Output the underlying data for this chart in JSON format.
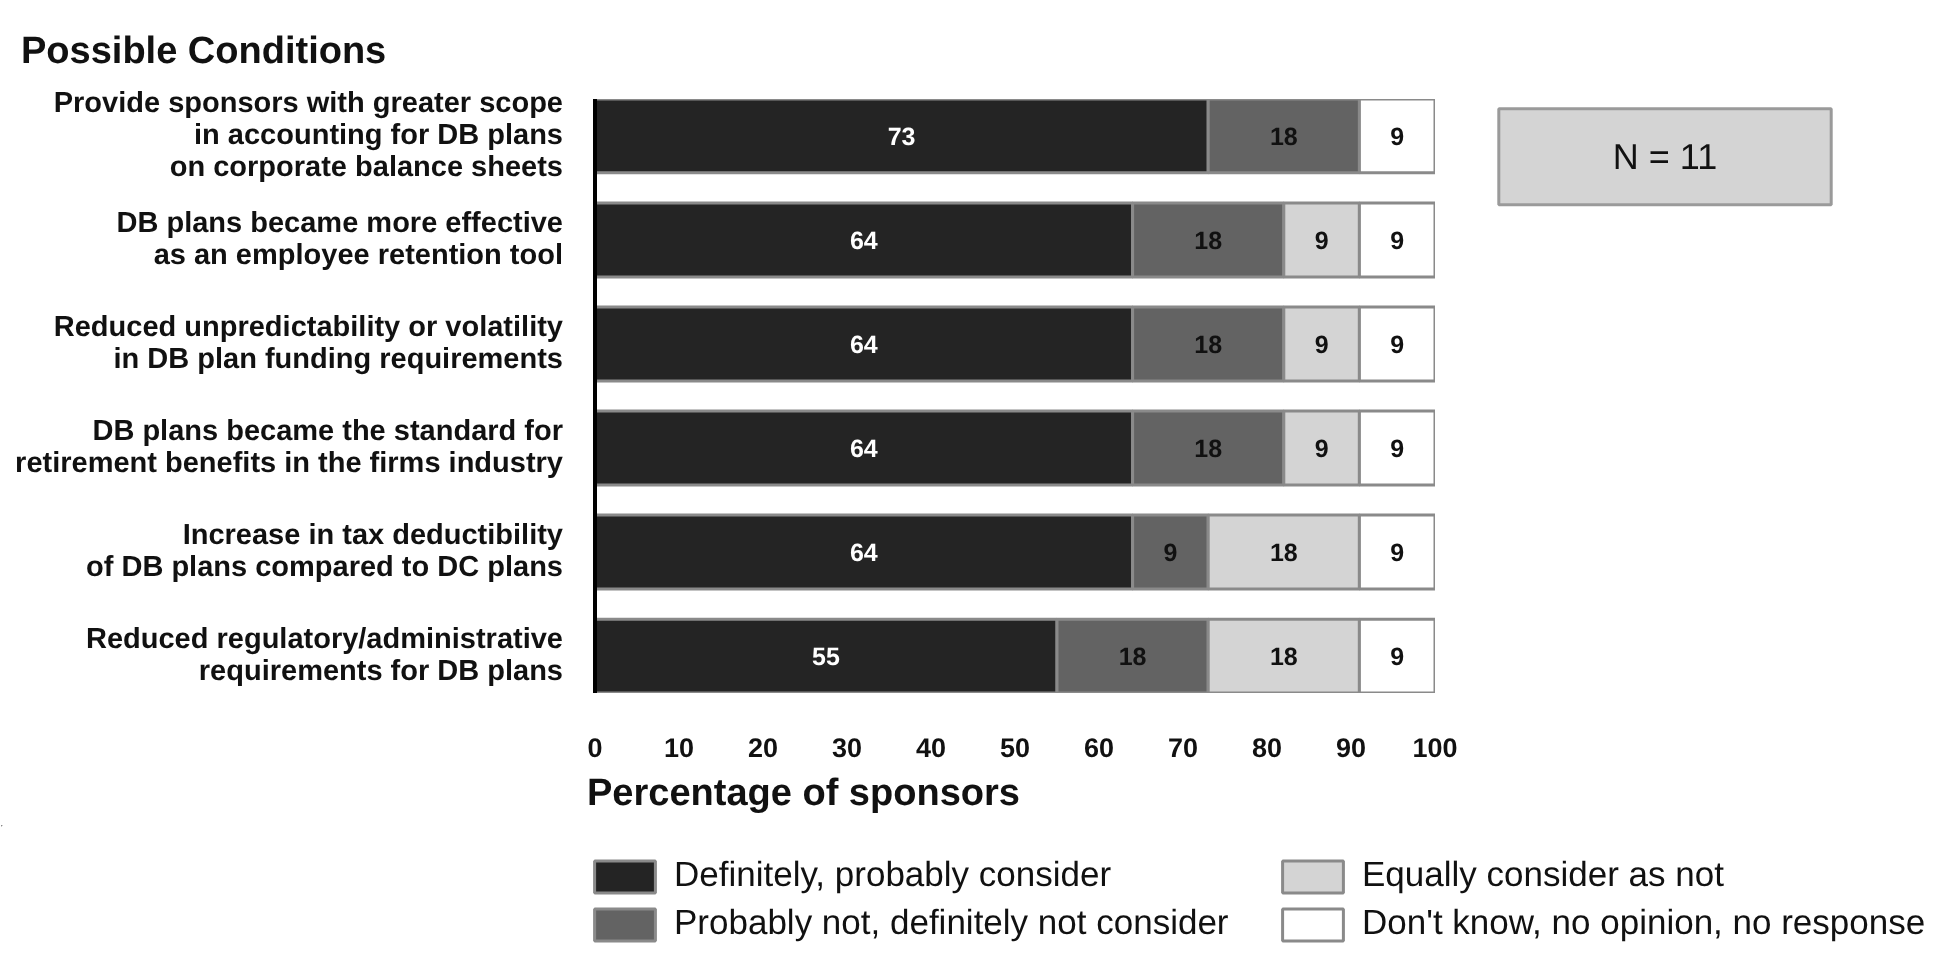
{
  "chart_data": {
    "type": "bar",
    "orientation": "horizontal",
    "stacked": true,
    "title": "Possible Conditions",
    "categories": [
      "Provide sponsors with greater scope\nin accounting for DB plans\non corporate balance sheets",
      "DB plans became more effective\nas an employee retention tool",
      "Reduced unpredictability or volatility\nin DB plan funding requirements",
      "DB plans became the standard for\nretirement benefits in the firms industry",
      "Increase in tax deductibility\nof DB plans compared to DC plans",
      "Reduced regulatory/administrative\nrequirements for DB plans"
    ],
    "series": [
      {
        "name": "Definitely, probably consider",
        "color": "#242424",
        "values": [
          73,
          64,
          64,
          64,
          64,
          55
        ]
      },
      {
        "name": "Probably not, definitely not consider",
        "color": "#636363",
        "values": [
          18,
          18,
          18,
          18,
          9,
          18
        ]
      },
      {
        "name": "Equally consider as not",
        "color": "#d4d4d4",
        "values": [
          null,
          9,
          9,
          9,
          18,
          18
        ]
      },
      {
        "name": "Don't know, no opinion, no response",
        "color": "#ffffff",
        "values": [
          9,
          9,
          9,
          9,
          9,
          9
        ]
      }
    ],
    "xlim": [
      0,
      100
    ],
    "xticks": [
      0,
      10,
      20,
      30,
      40,
      50,
      60,
      70,
      80,
      90,
      100
    ],
    "xlabel": "Percentage of sponsors",
    "data_labels": true,
    "legend": "bottom",
    "annotations": [
      "N = 11"
    ]
  }
}
